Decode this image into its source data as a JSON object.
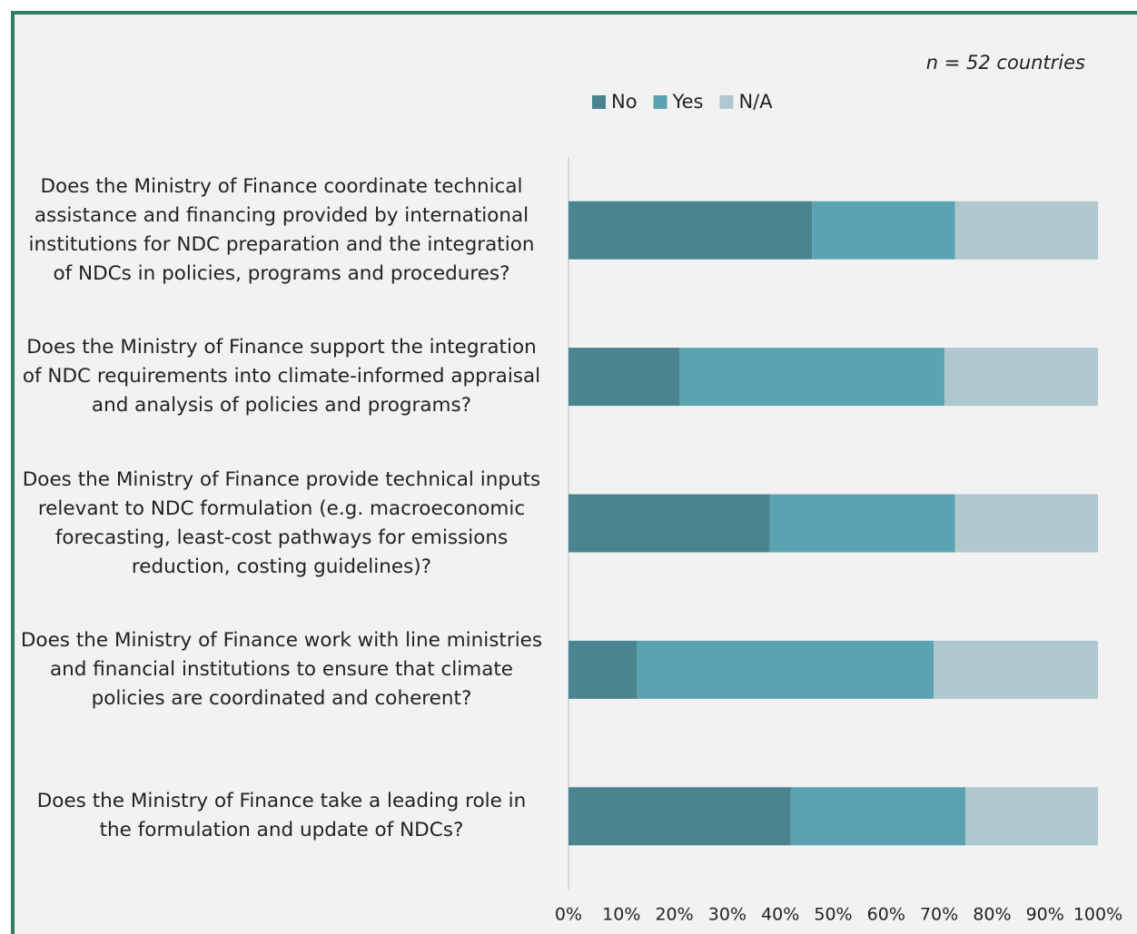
{
  "chart_data": {
    "type": "stacked_barh",
    "note": "n = 52 countries",
    "categories": [
      "Does the Ministry of Finance coordinate technical assistance and financing provided by international institutions for NDC preparation and the integration of NDCs in policies, programs and procedures?",
      "Does the Ministry of Finance support the integration of NDC requirements into climate-informed appraisal and analysis of policies and programs?",
      "Does the Ministry of Finance provide technical inputs relevant to NDC formulation (e.g. macroeconomic forecasting, least-cost pathways for emissions reduction, costing guidelines)?",
      "Does the Ministry of Finance work with line ministries and financial institutions to ensure that climate policies are coordinated and coherent?",
      "Does the Ministry of Finance take a leading role in the formulation and update of NDCs?"
    ],
    "series": [
      {
        "name": "No",
        "color": "#4a848f",
        "values": [
          46,
          21,
          38,
          13,
          42
        ]
      },
      {
        "name": "Yes",
        "color": "#5ba3b0",
        "values": [
          27,
          50,
          35,
          56,
          33
        ]
      },
      {
        "name": "N/A",
        "color": "#aec8ce",
        "values": [
          27,
          29,
          27,
          31,
          25
        ]
      }
    ],
    "xlim": [
      0,
      100
    ],
    "xticks": [
      {
        "value": 0,
        "label": "0%"
      },
      {
        "value": 10,
        "label": "10%"
      },
      {
        "value": 20,
        "label": "20%"
      },
      {
        "value": 30,
        "label": "30%"
      },
      {
        "value": 40,
        "label": "40%"
      },
      {
        "value": 50,
        "label": "50%"
      },
      {
        "value": 60,
        "label": "60%"
      },
      {
        "value": 70,
        "label": "70%"
      },
      {
        "value": 80,
        "label": "80%"
      },
      {
        "value": 90,
        "label": "90%"
      },
      {
        "value": 100,
        "label": "100%"
      }
    ],
    "legend": "top"
  }
}
